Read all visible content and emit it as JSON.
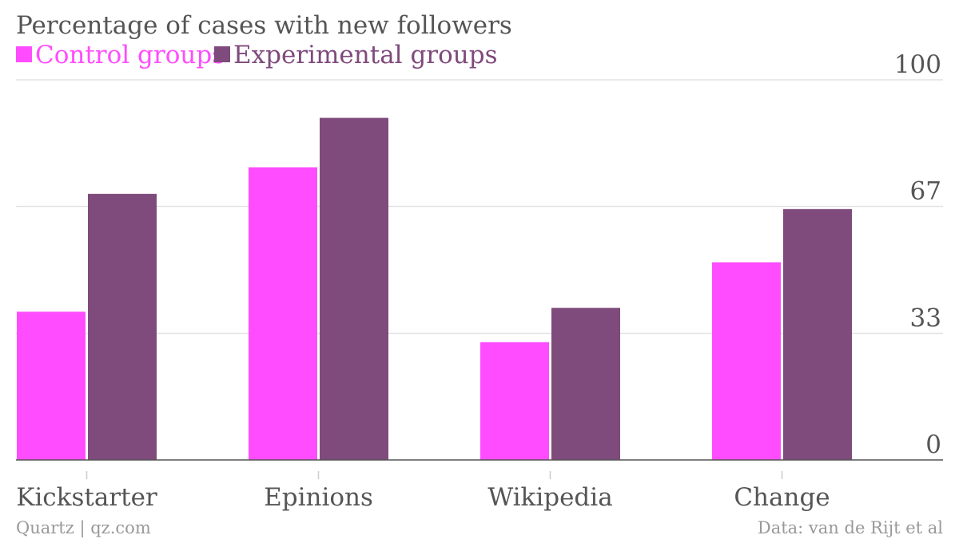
{
  "chart_data": {
    "type": "bar",
    "title": "Percentage of cases with new followers",
    "categories": [
      "Kickstarter",
      "Epinions",
      "Wikipedia",
      "Change"
    ],
    "series": [
      {
        "name": "Control groups",
        "color": "#ff4cff",
        "values": [
          39,
          77,
          31,
          52
        ]
      },
      {
        "name": "Experimental groups",
        "color": "#7f4a7c",
        "values": [
          70,
          90,
          40,
          66
        ]
      }
    ],
    "ylim": [
      0,
      100
    ],
    "yticks": [
      {
        "value": 0,
        "label": "0"
      },
      {
        "value": 33.3,
        "label": "33"
      },
      {
        "value": 66.7,
        "label": "67"
      },
      {
        "value": 100,
        "label": "100"
      }
    ],
    "grid": true,
    "legend_position": "top-left"
  },
  "footer": {
    "source_left": "Quartz | qz.com",
    "source_right": "Data: van de Rijt et al"
  }
}
